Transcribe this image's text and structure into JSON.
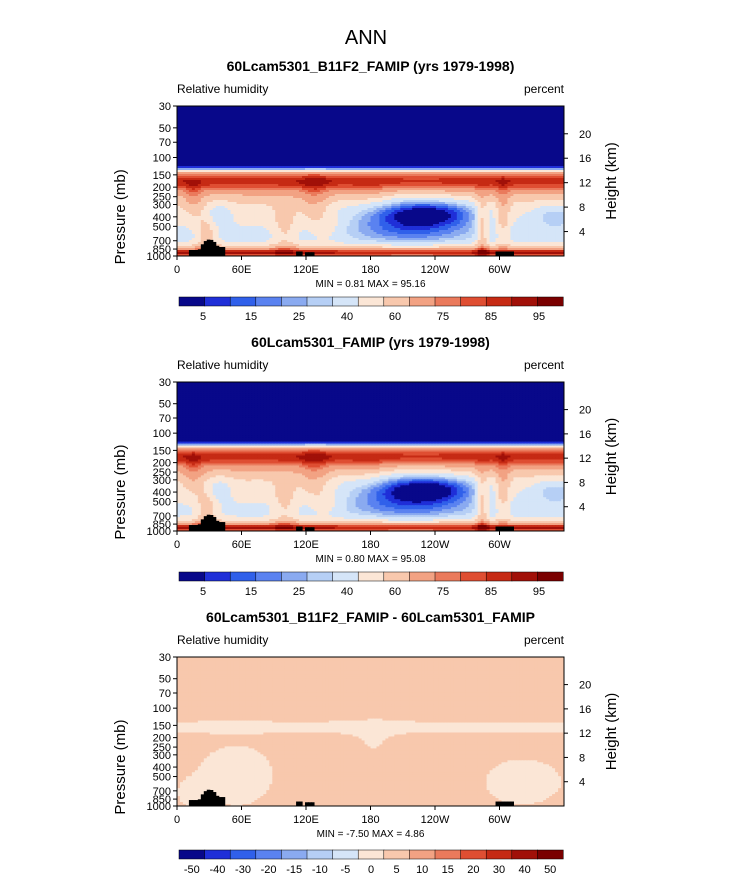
{
  "page_title": "ANN",
  "colors": {
    "seq": [
      "#08088a",
      "#1f2fd8",
      "#3060ea",
      "#5a82f0",
      "#8aaaf0",
      "#b6cff5",
      "#d5e5f8",
      "#fbe6d6",
      "#f8c8ad",
      "#f2a283",
      "#ea7a5c",
      "#df4e32",
      "#c62a14",
      "#a11008",
      "#7a0000"
    ],
    "diff": [
      "#08088a",
      "#1f2fd8",
      "#3060ea",
      "#5a82f0",
      "#8aaaf0",
      "#b6cff5",
      "#d5e5f8",
      "#fbe6d6",
      "#f8c8ad",
      "#f2a283",
      "#ea7a5c",
      "#df4e32",
      "#c62a14",
      "#a11008",
      "#7a0000"
    ]
  },
  "chart_data": [
    {
      "type": "heatmap",
      "title": "60Lcam5301_B11F2_FAMIP (yrs 1979-1998)",
      "left_label": "Relative humidity",
      "right_label": "percent",
      "ylabel": "Pressure (mb)",
      "ylabel_right": "Height (km)",
      "y_ticks": [
        "30",
        "50",
        "70",
        "100",
        "150",
        "200",
        "250",
        "300",
        "400",
        "500",
        "700",
        "850",
        "1000"
      ],
      "y_tick_values": [
        30,
        50,
        70,
        100,
        150,
        200,
        250,
        300,
        400,
        500,
        700,
        850,
        1000
      ],
      "y_ticks_right": [
        "20",
        "16",
        "12",
        "8",
        "4"
      ],
      "y_ticks_right_values": [
        20,
        16,
        12,
        8,
        4
      ],
      "x_ticks": [
        "0",
        "60E",
        "120E",
        "180",
        "120W",
        "60W"
      ],
      "x_tick_values": [
        0,
        60,
        120,
        180,
        240,
        300
      ],
      "xlim": [
        0,
        360
      ],
      "ylim": [
        1000,
        30
      ],
      "stats_text": "MIN =     0.81   MAX =    95.16",
      "min": 0.81,
      "max": 95.16,
      "colorbar_labels": [
        "5",
        "15",
        "25",
        "40",
        "60",
        "75",
        "85",
        "95"
      ],
      "scale": "seq",
      "field": "control"
    },
    {
      "type": "heatmap",
      "title": "60Lcam5301_FAMIP (yrs 1979-1998)",
      "left_label": "Relative humidity",
      "right_label": "percent",
      "ylabel": "Pressure (mb)",
      "ylabel_right": "Height (km)",
      "y_ticks": [
        "30",
        "50",
        "70",
        "100",
        "150",
        "200",
        "250",
        "300",
        "400",
        "500",
        "700",
        "850",
        "1000"
      ],
      "y_tick_values": [
        30,
        50,
        70,
        100,
        150,
        200,
        250,
        300,
        400,
        500,
        700,
        850,
        1000
      ],
      "y_ticks_right": [
        "20",
        "16",
        "12",
        "8",
        "4"
      ],
      "y_ticks_right_values": [
        20,
        16,
        12,
        8,
        4
      ],
      "x_ticks": [
        "0",
        "60E",
        "120E",
        "180",
        "120W",
        "60W"
      ],
      "x_tick_values": [
        0,
        60,
        120,
        180,
        240,
        300
      ],
      "xlim": [
        0,
        360
      ],
      "ylim": [
        1000,
        30
      ],
      "stats_text": "MIN =     0.80   MAX =    95.08",
      "min": 0.8,
      "max": 95.08,
      "colorbar_labels": [
        "5",
        "15",
        "25",
        "40",
        "60",
        "75",
        "85",
        "95"
      ],
      "scale": "seq",
      "field": "case"
    },
    {
      "type": "heatmap",
      "title": "60Lcam5301_B11F2_FAMIP - 60Lcam5301_FAMIP",
      "left_label": "Relative humidity",
      "right_label": "percent",
      "ylabel": "Pressure (mb)",
      "ylabel_right": "Height (km)",
      "y_ticks": [
        "30",
        "50",
        "70",
        "100",
        "150",
        "200",
        "250",
        "300",
        "400",
        "500",
        "700",
        "850",
        "1000"
      ],
      "y_tick_values": [
        30,
        50,
        70,
        100,
        150,
        200,
        250,
        300,
        400,
        500,
        700,
        850,
        1000
      ],
      "y_ticks_right": [
        "20",
        "16",
        "12",
        "8",
        "4"
      ],
      "y_ticks_right_values": [
        20,
        16,
        12,
        8,
        4
      ],
      "x_ticks": [
        "0",
        "60E",
        "120E",
        "180",
        "120W",
        "60W"
      ],
      "x_tick_values": [
        0,
        60,
        120,
        180,
        240,
        300
      ],
      "xlim": [
        0,
        360
      ],
      "ylim": [
        1000,
        30
      ],
      "stats_text": "MIN =    -7.50   MAX =     4.86",
      "min": -7.5,
      "max": 4.86,
      "colorbar_labels": [
        "-50",
        "-40",
        "-30",
        "-20",
        "-15",
        "-10",
        "-5",
        "0",
        "5",
        "10",
        "15",
        "20",
        "30",
        "40",
        "50"
      ],
      "scale": "diff",
      "field": "diff"
    }
  ]
}
